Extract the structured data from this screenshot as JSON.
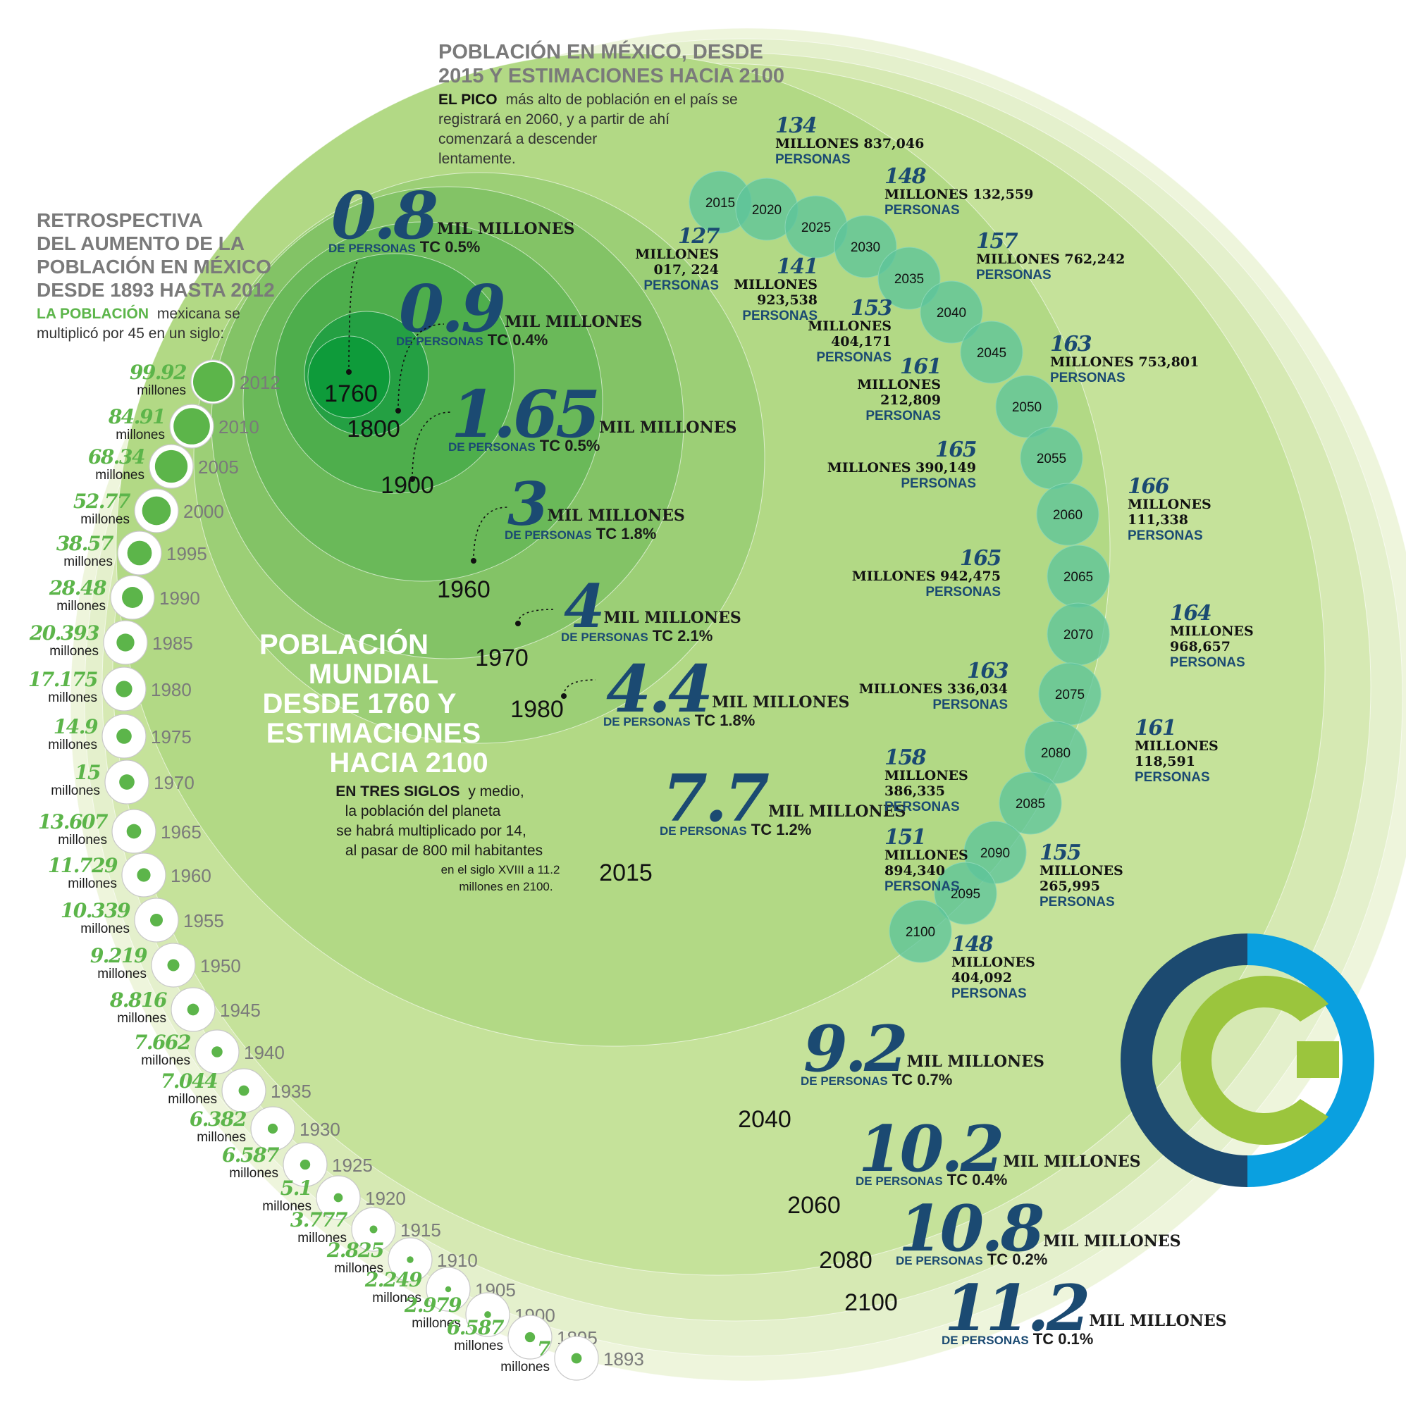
{
  "colors": {
    "navy": "#1b4a72",
    "gray_title": "#7a7a7a",
    "green_text": "#5cb54a",
    "dark_green": "#0e9b3a",
    "mint": "#5ec49a",
    "logo_navy": "#1c4a70",
    "logo_blue": "#0aa0e0",
    "logo_green": "#9bc53d"
  },
  "mexico_history": {
    "title_lines": [
      "RETROSPECTIVA",
      "DEL AUMENTO DE LA",
      "POBLACIÓN EN MÉXICO",
      "DESDE 1893 HASTA 2012"
    ],
    "subtitle_lead": "LA POBLACIÓN",
    "subtitle_rest_1": "mexicana se",
    "subtitle_rest_2": "multiplicó por 45 en un siglo:",
    "unit": "millones"
  },
  "mexico_projection": {
    "title_lines": [
      "POBLACIÓN EN MÉXICO,  DESDE",
      "2015 Y ESTIMACIONES  HACIA 2100"
    ],
    "body_lead": "EL PICO",
    "body_lines": [
      "más alto de población en el país se",
      "registrará en 2060, y a partir de ahí",
      "comenzará a descender",
      "lentamente."
    ]
  },
  "world": {
    "title_lines": [
      "POBLACIÓN",
      "MUNDIAL",
      "DESDE 1760 Y",
      "ESTIMACIONES",
      "HACIA 2100"
    ],
    "body_lead": "EN TRES SIGLOS",
    "body_lines_1": "y medio,",
    "body_lines": [
      "la población del planeta",
      "se habrá multiplicado por 14,",
      "al pasar de 800  mil habitantes",
      "en  el siglo XVIII a 11.2",
      "millones en 2100."
    ],
    "unit_line": "MIL MILLONES",
    "persons_label": "DE PERSONAS"
  },
  "chart_data": [
    {
      "type": "bubble",
      "title": "RETROSPECTIVA DEL AUMENTO DE LA POBLACIÓN EN MÉXICO DESDE 1893 HASTA 2012",
      "unit": "millones",
      "points": [
        {
          "year": "2012",
          "value": "99.92"
        },
        {
          "year": "2010",
          "value": "84.91"
        },
        {
          "year": "2005",
          "value": "68.34"
        },
        {
          "year": "2000",
          "value": "52.77"
        },
        {
          "year": "1995",
          "value": "38.57"
        },
        {
          "year": "1990",
          "value": "28.48"
        },
        {
          "year": "1985",
          "value": "20.393"
        },
        {
          "year": "1980",
          "value": "17.175"
        },
        {
          "year": "1975",
          "value": "14.9"
        },
        {
          "year": "1970",
          "value": "15"
        },
        {
          "year": "1965",
          "value": "13.607"
        },
        {
          "year": "1960",
          "value": "11.729"
        },
        {
          "year": "1955",
          "value": "10.339"
        },
        {
          "year": "1950",
          "value": "9.219"
        },
        {
          "year": "1945",
          "value": "8.816"
        },
        {
          "year": "1940",
          "value": "7.662"
        },
        {
          "year": "1935",
          "value": "7.044"
        },
        {
          "year": "1930",
          "value": "6.382"
        },
        {
          "year": "1925",
          "value": "6.587"
        },
        {
          "year": "1920",
          "value": "5.1"
        },
        {
          "year": "1915",
          "value": "3.777"
        },
        {
          "year": "1910",
          "value": "2.825"
        },
        {
          "year": "1905",
          "value": "2.249"
        },
        {
          "year": "1900",
          "value": "2.979"
        },
        {
          "year": "1895",
          "value": "6.587"
        },
        {
          "year": "1893",
          "value": "7"
        }
      ]
    },
    {
      "type": "bubble",
      "title": "POBLACIÓN MUNDIAL DESDE 1760 Y ESTIMACIONES HACIA 2100",
      "unit": "MIL MILLONES",
      "points": [
        {
          "year": "1760",
          "value": "0.8",
          "tc": "TC 0.5%"
        },
        {
          "year": "1800",
          "value": "0.9",
          "tc": "TC 0.4%"
        },
        {
          "year": "1900",
          "value": "1.65",
          "tc": "TC 0.5%"
        },
        {
          "year": "1960",
          "value": "3",
          "tc": "TC 1.8%"
        },
        {
          "year": "1970",
          "value": "4",
          "tc": "TC 2.1%"
        },
        {
          "year": "1980",
          "value": "4.4",
          "tc": "TC 1.8%"
        },
        {
          "year": "2015",
          "value": "7.7",
          "tc": "TC 1.2%"
        },
        {
          "year": "2040",
          "value": "9.2",
          "tc": "TC 0.7%"
        },
        {
          "year": "2060",
          "value": "10.2",
          "tc": "TC 0.4%"
        },
        {
          "year": "2080",
          "value": "10.8",
          "tc": "TC 0.2%"
        },
        {
          "year": "2100",
          "value": "11.2",
          "tc": "TC 0.1%"
        }
      ]
    },
    {
      "type": "bubble-sequence",
      "title": "POBLACIÓN EN MÉXICO, DESDE 2015 Y ESTIMACIONES HACIA 2100",
      "points": [
        {
          "year": "2015",
          "big": "127",
          "lines": [
            "MILLONES",
            "017, 224",
            "PERSONAS"
          ]
        },
        {
          "year": "2020",
          "big": "134",
          "lines": [
            "MILLONES 837,046",
            "PERSONAS"
          ]
        },
        {
          "year": "2025",
          "big": "141",
          "lines": [
            "MILLONES",
            "923,538",
            "PERSONAS"
          ]
        },
        {
          "year": "2030",
          "big": "148",
          "lines": [
            "MILLONES 132,559",
            "PERSONAS"
          ]
        },
        {
          "year": "2035",
          "big": "153",
          "lines": [
            "MILLONES",
            "404,171",
            "PERSONAS"
          ]
        },
        {
          "year": "2040",
          "big": "157",
          "lines": [
            "MILLONES 762,242",
            "PERSONAS"
          ]
        },
        {
          "year": "2045",
          "big": "161",
          "lines": [
            "MILLONES",
            "212,809",
            "PERSONAS"
          ]
        },
        {
          "year": "2050",
          "big": "163",
          "lines": [
            "MILLONES 753,801",
            "PERSONAS"
          ]
        },
        {
          "year": "2055",
          "big": "165",
          "lines": [
            "MILLONES 390,149",
            "PERSONAS"
          ]
        },
        {
          "year": "2060",
          "big": "166",
          "lines": [
            "MILLONES",
            "111,338",
            "PERSONAS"
          ]
        },
        {
          "year": "2065",
          "big": "165",
          "lines": [
            "MILLONES 942,475",
            "PERSONAS"
          ]
        },
        {
          "year": "2070",
          "big": "164",
          "lines": [
            "MILLONES",
            "968,657",
            "PERSONAS"
          ]
        },
        {
          "year": "2075",
          "big": "163",
          "lines": [
            "MILLONES 336,034",
            "PERSONAS"
          ]
        },
        {
          "year": "2080",
          "big": "161",
          "lines": [
            "MILLONES",
            "118,591",
            "PERSONAS"
          ]
        },
        {
          "year": "2085",
          "big": "158",
          "lines": [
            "MILLONES",
            "386,335",
            "PERSONAS"
          ]
        },
        {
          "year": "2090",
          "big": "155",
          "lines": [
            "MILLONES",
            "265,995",
            "PERSONAS"
          ]
        },
        {
          "year": "2095",
          "big": "151",
          "lines": [
            "MILLONES",
            "894,340",
            "PERSONAS"
          ]
        },
        {
          "year": "2100",
          "big": "148",
          "lines": [
            "MILLONES",
            "404,092",
            "PERSONAS"
          ]
        }
      ]
    }
  ]
}
